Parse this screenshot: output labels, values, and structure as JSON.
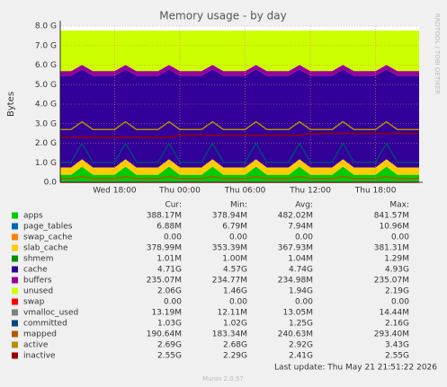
{
  "chart_data": {
    "type": "area",
    "title": "Memory usage - by day",
    "ylabel": "Bytes",
    "side_text": "RRDTOOL / TOBI OETIKER",
    "categories": [
      null,
      null,
      null,
      null,
      null,
      "Wed 18:00",
      null,
      null,
      null,
      null,
      null,
      "Thu 00:00",
      null,
      null,
      null,
      null,
      null,
      "Thu 06:00",
      null,
      null,
      null,
      null,
      null,
      "Thu 12:00",
      null,
      null,
      null,
      null,
      null,
      "Thu 18:00",
      null,
      null,
      null,
      null
    ],
    "ylim": [
      0,
      8
    ],
    "yticks": [
      {
        "value": 0,
        "label": "0.0"
      },
      {
        "value": 1,
        "label": "1.0 G"
      },
      {
        "value": 2,
        "label": "2.0 G"
      },
      {
        "value": 3,
        "label": "3.0 G"
      },
      {
        "value": 4,
        "label": "4.0 G"
      },
      {
        "value": 5,
        "label": "5.0 G"
      },
      {
        "value": 6,
        "label": "6.0 G"
      },
      {
        "value": 7,
        "label": "7.0 G"
      },
      {
        "value": 8,
        "label": "8.0 G"
      }
    ],
    "grid": true,
    "legend_headers": [
      "Cur:",
      "Min:",
      "Avg:",
      "Max:"
    ],
    "series": [
      {
        "name": "apps",
        "color": "#00cc00",
        "style": "area",
        "cur": "388.17M",
        "min": "378.94M",
        "avg": "482.02M",
        "max": "841.57M",
        "values": [
          0.38,
          0.38,
          0.8,
          0.38,
          0.38,
          0.38,
          0.8,
          0.38,
          0.38,
          0.38,
          0.8,
          0.38,
          0.38,
          0.38,
          0.8,
          0.38,
          0.38,
          0.38,
          0.8,
          0.38,
          0.38,
          0.38,
          0.8,
          0.38,
          0.38,
          0.38,
          0.8,
          0.38,
          0.38,
          0.38,
          0.8,
          0.38,
          0.38,
          0.38
        ]
      },
      {
        "name": "page_tables",
        "color": "#0066b3",
        "style": "area",
        "cur": "6.88M",
        "min": "6.79M",
        "avg": "7.94M",
        "max": "10.96M",
        "values": [
          0.007,
          0.007,
          0.007,
          0.007,
          0.007,
          0.007,
          0.007,
          0.007,
          0.007,
          0.007,
          0.007,
          0.007,
          0.007,
          0.007,
          0.007,
          0.007,
          0.007,
          0.007,
          0.007,
          0.007,
          0.007,
          0.007,
          0.007,
          0.007,
          0.007,
          0.007,
          0.007,
          0.007,
          0.007,
          0.007,
          0.007,
          0.007,
          0.007,
          0.007
        ]
      },
      {
        "name": "swap_cache",
        "color": "#ff8000",
        "style": "area",
        "cur": "0.00",
        "min": "0.00",
        "avg": "0.00",
        "max": "0.00",
        "values": [
          0,
          0,
          0,
          0,
          0,
          0,
          0,
          0,
          0,
          0,
          0,
          0,
          0,
          0,
          0,
          0,
          0,
          0,
          0,
          0,
          0,
          0,
          0,
          0,
          0,
          0,
          0,
          0,
          0,
          0,
          0,
          0,
          0,
          0
        ]
      },
      {
        "name": "slab_cache",
        "color": "#ffcc00",
        "style": "area",
        "cur": "378.99M",
        "min": "353.39M",
        "avg": "367.93M",
        "max": "381.31M",
        "values": [
          0.37,
          0.37,
          0.37,
          0.37,
          0.37,
          0.37,
          0.37,
          0.37,
          0.37,
          0.37,
          0.37,
          0.37,
          0.37,
          0.37,
          0.37,
          0.37,
          0.37,
          0.37,
          0.37,
          0.37,
          0.37,
          0.37,
          0.37,
          0.37,
          0.37,
          0.37,
          0.37,
          0.37,
          0.37,
          0.37,
          0.37,
          0.37,
          0.37,
          0.37
        ]
      },
      {
        "name": "shmem",
        "color": "#008f00",
        "style": "area",
        "cur": "1.01M",
        "min": "1.00M",
        "avg": "1.04M",
        "max": "1.29M",
        "values": [
          0.001,
          0.001,
          0.001,
          0.001,
          0.001,
          0.001,
          0.001,
          0.001,
          0.001,
          0.001,
          0.001,
          0.001,
          0.001,
          0.001,
          0.001,
          0.001,
          0.001,
          0.001,
          0.001,
          0.001,
          0.001,
          0.001,
          0.001,
          0.001,
          0.001,
          0.001,
          0.001,
          0.001,
          0.001,
          0.001,
          0.001,
          0.001,
          0.001,
          0.001
        ]
      },
      {
        "name": "cache",
        "color": "#330099",
        "style": "area",
        "cur": "4.71G",
        "min": "4.57G",
        "avg": "4.74G",
        "max": "4.93G",
        "values": [
          4.7,
          4.7,
          4.6,
          4.7,
          4.7,
          4.7,
          4.6,
          4.7,
          4.7,
          4.7,
          4.6,
          4.7,
          4.7,
          4.7,
          4.6,
          4.7,
          4.7,
          4.7,
          4.6,
          4.7,
          4.7,
          4.7,
          4.6,
          4.7,
          4.7,
          4.7,
          4.6,
          4.7,
          4.7,
          4.7,
          4.6,
          4.7,
          4.7,
          4.7
        ]
      },
      {
        "name": "buffers",
        "color": "#990099",
        "style": "area",
        "cur": "235.07M",
        "min": "234.77M",
        "avg": "234.98M",
        "max": "235.07M",
        "values": [
          0.235,
          0.235,
          0.235,
          0.235,
          0.235,
          0.235,
          0.235,
          0.235,
          0.235,
          0.235,
          0.235,
          0.235,
          0.235,
          0.235,
          0.235,
          0.235,
          0.235,
          0.235,
          0.235,
          0.235,
          0.235,
          0.235,
          0.235,
          0.235,
          0.235,
          0.235,
          0.235,
          0.235,
          0.235,
          0.235,
          0.235,
          0.235,
          0.235,
          0.235
        ]
      },
      {
        "name": "unused",
        "color": "#ccff00",
        "style": "area",
        "cur": "2.06G",
        "min": "1.46G",
        "avg": "1.94G",
        "max": "2.19G",
        "values": [
          2.07,
          2.07,
          1.75,
          2.07,
          2.07,
          2.07,
          1.75,
          2.07,
          2.07,
          2.07,
          1.75,
          2.07,
          2.07,
          2.07,
          1.75,
          2.07,
          2.07,
          2.07,
          1.75,
          2.07,
          2.07,
          2.07,
          1.75,
          2.07,
          2.07,
          2.07,
          1.75,
          2.07,
          2.07,
          2.07,
          1.75,
          2.07,
          2.07,
          2.07
        ]
      },
      {
        "name": "swap",
        "color": "#ff0000",
        "style": "line",
        "cur": "0.00",
        "min": "0.00",
        "avg": "0.00",
        "max": "0.00",
        "values": [
          0,
          0,
          0,
          0,
          0,
          0,
          0,
          0,
          0,
          0,
          0,
          0,
          0,
          0,
          0,
          0,
          0,
          0,
          0,
          0,
          0,
          0,
          0,
          0,
          0,
          0,
          0,
          0,
          0,
          0,
          0,
          0,
          0,
          0
        ]
      },
      {
        "name": "vmalloc_used",
        "color": "#808080",
        "style": "line",
        "cur": "13.19M",
        "min": "12.11M",
        "avg": "13.05M",
        "max": "14.44M",
        "values": [
          0.013,
          0.013,
          0.013,
          0.013,
          0.013,
          0.013,
          0.013,
          0.013,
          0.013,
          0.013,
          0.013,
          0.013,
          0.013,
          0.013,
          0.013,
          0.013,
          0.013,
          0.013,
          0.013,
          0.013,
          0.013,
          0.013,
          0.013,
          0.013,
          0.013,
          0.013,
          0.013,
          0.013,
          0.013,
          0.013,
          0.013,
          0.013,
          0.013,
          0.013
        ]
      },
      {
        "name": "committed",
        "color": "#00487d",
        "style": "line",
        "cur": "1.03G",
        "min": "1.02G",
        "avg": "1.25G",
        "max": "2.16G",
        "values": [
          1.03,
          1.03,
          2.0,
          1.03,
          1.03,
          1.03,
          2.0,
          1.03,
          1.03,
          1.03,
          2.0,
          1.03,
          1.03,
          1.03,
          2.0,
          1.03,
          1.03,
          1.03,
          2.0,
          1.03,
          1.03,
          1.03,
          2.0,
          1.03,
          1.03,
          1.03,
          2.0,
          1.03,
          1.03,
          1.03,
          2.0,
          1.03,
          1.03,
          1.03
        ]
      },
      {
        "name": "mapped",
        "color": "#b35a00",
        "style": "line",
        "cur": "190.64M",
        "min": "183.34M",
        "avg": "240.63M",
        "max": "293.40M",
        "values": [
          0.19,
          0.19,
          0.29,
          0.19,
          0.19,
          0.19,
          0.29,
          0.19,
          0.19,
          0.19,
          0.29,
          0.19,
          0.19,
          0.19,
          0.29,
          0.19,
          0.19,
          0.19,
          0.29,
          0.19,
          0.19,
          0.19,
          0.29,
          0.19,
          0.19,
          0.19,
          0.29,
          0.19,
          0.19,
          0.19,
          0.29,
          0.19,
          0.19,
          0.19
        ]
      },
      {
        "name": "active",
        "color": "#b38f00",
        "style": "line",
        "cur": "2.69G",
        "min": "2.68G",
        "avg": "2.92G",
        "max": "3.43G",
        "values": [
          2.7,
          2.7,
          3.1,
          2.7,
          2.7,
          2.7,
          3.1,
          2.7,
          2.7,
          2.7,
          3.1,
          2.7,
          2.7,
          2.7,
          3.1,
          2.7,
          2.7,
          2.7,
          3.1,
          2.7,
          2.7,
          2.7,
          3.1,
          2.7,
          2.7,
          2.7,
          3.1,
          2.7,
          2.7,
          2.7,
          3.1,
          2.7,
          2.7,
          2.7
        ]
      },
      {
        "name": "inactive",
        "color": "#990000",
        "style": "line",
        "cur": "2.55G",
        "min": "2.29G",
        "avg": "2.41G",
        "max": "2.55G",
        "values": [
          2.3,
          2.3,
          2.3,
          2.3,
          2.3,
          2.3,
          2.3,
          2.3,
          2.3,
          2.3,
          2.3,
          2.4,
          2.4,
          2.4,
          2.4,
          2.4,
          2.4,
          2.4,
          2.4,
          2.4,
          2.4,
          2.4,
          2.4,
          2.5,
          2.5,
          2.5,
          2.5,
          2.5,
          2.5,
          2.5,
          2.5,
          2.5,
          2.5,
          2.5
        ]
      }
    ],
    "footer": "Last update: Thu May 21 21:51:22 2026",
    "version": "Munin 2.0.57"
  }
}
